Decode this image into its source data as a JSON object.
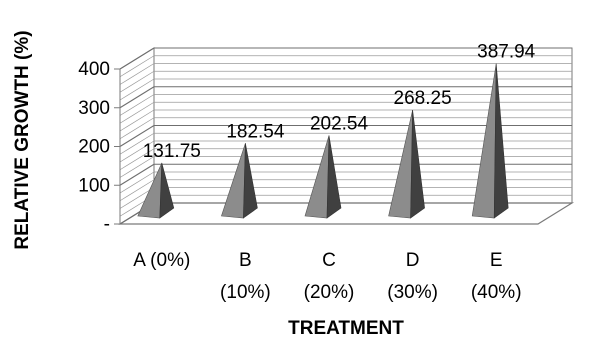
{
  "chart_data": {
    "type": "bar",
    "bar_shape": "pyramid-3d",
    "categories": [
      {
        "line1": "A (0%)",
        "line2": ""
      },
      {
        "line1": "B",
        "line2": "(10%)"
      },
      {
        "line1": "C",
        "line2": "(20%)"
      },
      {
        "line1": "D",
        "line2": "(30%)"
      },
      {
        "line1": "E",
        "line2": "(40%)"
      }
    ],
    "values": [
      131.75,
      182.54,
      202.54,
      268.25,
      387.94
    ],
    "data_labels": [
      "131.75",
      "182.54",
      "202.54",
      "268.25",
      "387.94"
    ],
    "xlabel": "TREATMENT",
    "ylabel": "RELATIVE GROWTH (%)",
    "ylim": [
      0,
      400
    ],
    "yticks": [
      {
        "value": 0,
        "label": "-"
      },
      {
        "value": 100,
        "label": "100"
      },
      {
        "value": 200,
        "label": "200"
      },
      {
        "value": 300,
        "label": "300"
      },
      {
        "value": 400,
        "label": "400"
      }
    ],
    "grid": true,
    "legend": false,
    "colors": {
      "bar_front": "#8c8c8c",
      "bar_side": "#404040",
      "wall": "#ffffff",
      "grid": "#9a9a9a"
    }
  }
}
